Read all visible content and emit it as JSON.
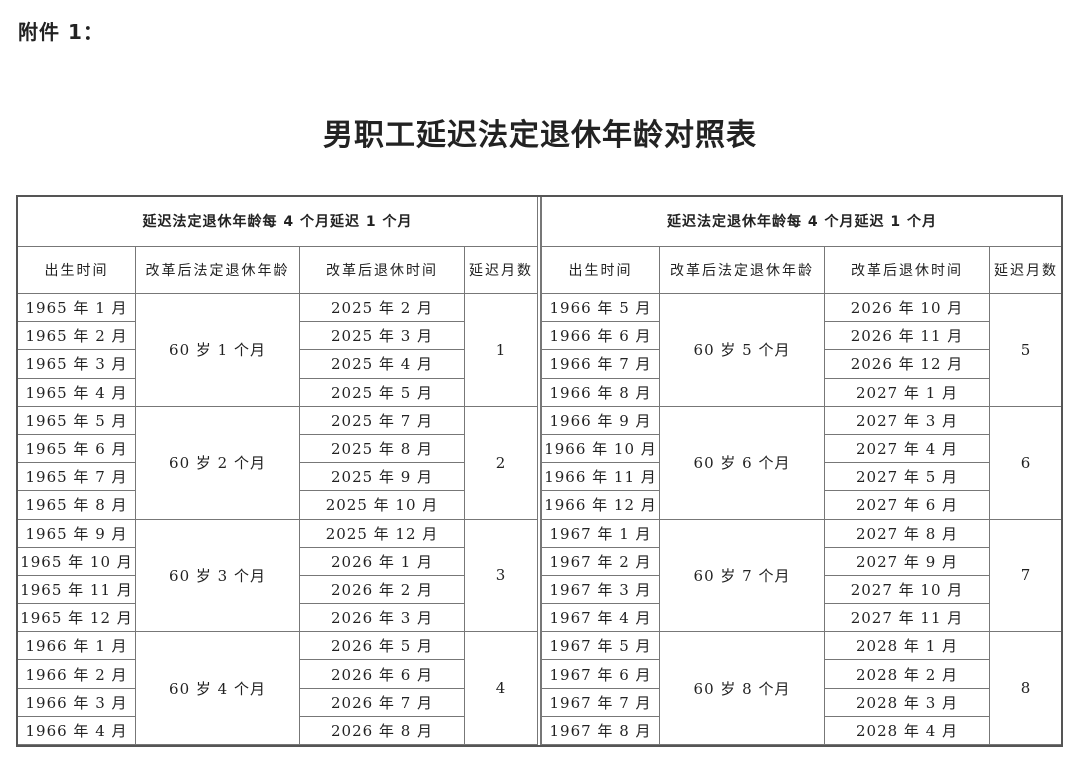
{
  "attachment_label": "附件 1：",
  "title": "男职工延迟法定退休年龄对照表",
  "tables": [
    {
      "caption": "延迟法定退休年龄每 4 个月延迟 1 个月",
      "headers": [
        "出生时间",
        "改革后法定退休年龄",
        "改革后退休时间",
        "延迟月数"
      ],
      "groups": [
        {
          "age": "60 岁 1 个月",
          "delay": "1",
          "births": [
            "1965 年 1 月",
            "1965 年 2 月",
            "1965 年 3 月",
            "1965 年 4 月"
          ],
          "retire": [
            "2025 年 2 月",
            "2025 年 3 月",
            "2025 年 4 月",
            "2025 年 5 月"
          ]
        },
        {
          "age": "60 岁 2 个月",
          "delay": "2",
          "births": [
            "1965 年 5 月",
            "1965 年 6 月",
            "1965 年 7 月",
            "1965 年 8 月"
          ],
          "retire": [
            "2025 年 7 月",
            "2025 年 8 月",
            "2025 年 9 月",
            "2025 年 10 月"
          ]
        },
        {
          "age": "60 岁 3 个月",
          "delay": "3",
          "births": [
            "1965 年 9 月",
            "1965 年 10 月",
            "1965 年 11 月",
            "1965 年 12 月"
          ],
          "retire": [
            "2025 年 12 月",
            "2026 年 1 月",
            "2026 年 2 月",
            "2026 年 3 月"
          ]
        },
        {
          "age": "60 岁 4 个月",
          "delay": "4",
          "births": [
            "1966 年 1 月",
            "1966 年 2 月",
            "1966 年 3 月",
            "1966 年 4 月"
          ],
          "retire": [
            "2026 年 5 月",
            "2026 年 6 月",
            "2026 年 7 月",
            "2026 年 8 月"
          ]
        }
      ]
    },
    {
      "caption": "延迟法定退休年龄每 4 个月延迟 1 个月",
      "headers": [
        "出生时间",
        "改革后法定退休年龄",
        "改革后退休时间",
        "延迟月数"
      ],
      "groups": [
        {
          "age": "60 岁 5 个月",
          "delay": "5",
          "births": [
            "1966 年 5 月",
            "1966 年 6 月",
            "1966 年 7 月",
            "1966 年 8 月"
          ],
          "retire": [
            "2026 年 10 月",
            "2026 年 11 月",
            "2026 年 12 月",
            "2027 年 1 月"
          ]
        },
        {
          "age": "60 岁 6 个月",
          "delay": "6",
          "births": [
            "1966 年 9 月",
            "1966 年 10 月",
            "1966 年 11 月",
            "1966 年 12 月"
          ],
          "retire": [
            "2027 年 3 月",
            "2027 年 4 月",
            "2027 年 5 月",
            "2027 年 6 月"
          ]
        },
        {
          "age": "60 岁 7 个月",
          "delay": "7",
          "births": [
            "1967 年 1 月",
            "1967 年 2 月",
            "1967 年 3 月",
            "1967 年 4 月"
          ],
          "retire": [
            "2027 年 8 月",
            "2027 年 9 月",
            "2027 年 10 月",
            "2027 年 11 月"
          ]
        },
        {
          "age": "60 岁 8 个月",
          "delay": "8",
          "births": [
            "1967 年 5 月",
            "1967 年 6 月",
            "1967 年 7 月",
            "1967 年 8 月"
          ],
          "retire": [
            "2028 年 1 月",
            "2028 年 2 月",
            "2028 年 3 月",
            "2028 年 4 月"
          ]
        }
      ]
    }
  ]
}
